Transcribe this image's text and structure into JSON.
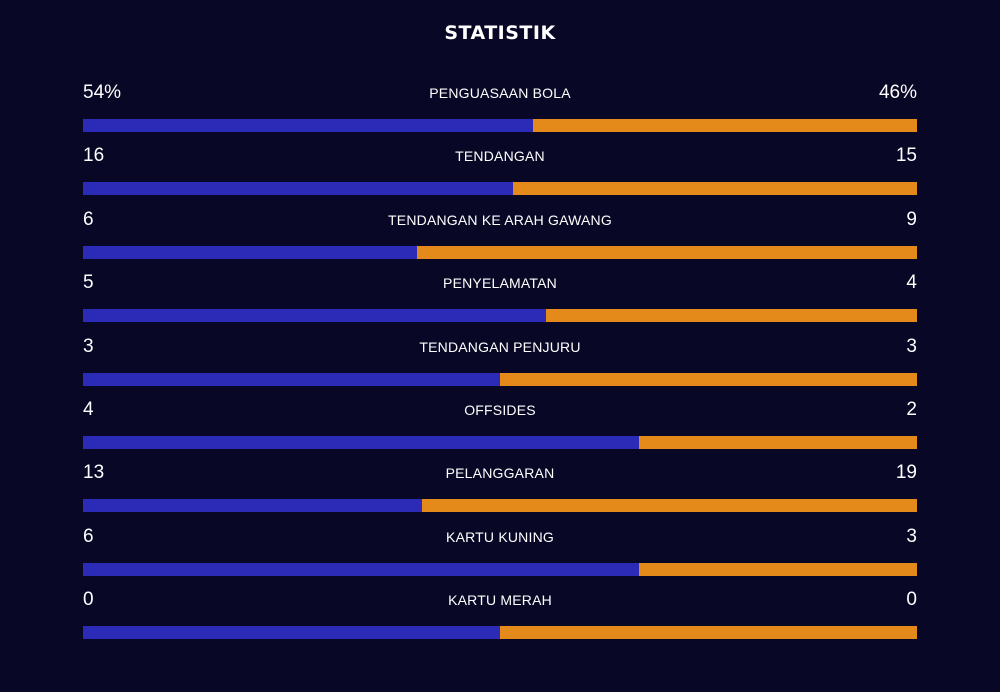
{
  "title": "STATISTIK",
  "colors": {
    "background": "#080826",
    "home": "#2b2bb8",
    "away": "#e38a1a"
  },
  "stats": [
    {
      "label": "PENGUASAAN BOLA",
      "home": "54%",
      "away": "46%",
      "home_share": 0.54
    },
    {
      "label": "TENDANGAN",
      "home": "16",
      "away": "15",
      "home_share": 0.5161
    },
    {
      "label": "TENDANGAN KE ARAH GAWANG",
      "home": "6",
      "away": "9",
      "home_share": 0.4
    },
    {
      "label": "PENYELAMATAN",
      "home": "5",
      "away": "4",
      "home_share": 0.5556
    },
    {
      "label": "TENDANGAN PENJURU",
      "home": "3",
      "away": "3",
      "home_share": 0.5
    },
    {
      "label": "OFFSIDES",
      "home": "4",
      "away": "2",
      "home_share": 0.6667
    },
    {
      "label": "PELANGGARAN",
      "home": "13",
      "away": "19",
      "home_share": 0.4063
    },
    {
      "label": "KARTU KUNING",
      "home": "6",
      "away": "3",
      "home_share": 0.6667
    },
    {
      "label": "KARTU MERAH",
      "home": "0",
      "away": "0",
      "home_share": 0.5
    }
  ]
}
